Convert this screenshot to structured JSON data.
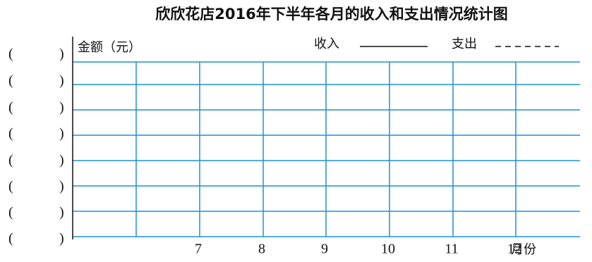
{
  "title": "欣欣花店2016年下半年各月的收入和支出情况统计图",
  "y_axis_label": "金额（元）",
  "legend": [
    {
      "name": "收入"
    },
    {
      "name": "支出"
    }
  ],
  "x_labels": [
    "7",
    "8",
    "9",
    "10",
    "11",
    "12"
  ],
  "x_axis_label": "月份",
  "y_blanks": [
    [
      "(",
      ")"
    ],
    [
      "(",
      ")"
    ],
    [
      "(",
      ")"
    ],
    [
      "(",
      ")"
    ],
    [
      "(",
      ")"
    ],
    [
      "(",
      ")"
    ],
    [
      "(",
      ")"
    ],
    [
      "(",
      ")"
    ]
  ]
}
